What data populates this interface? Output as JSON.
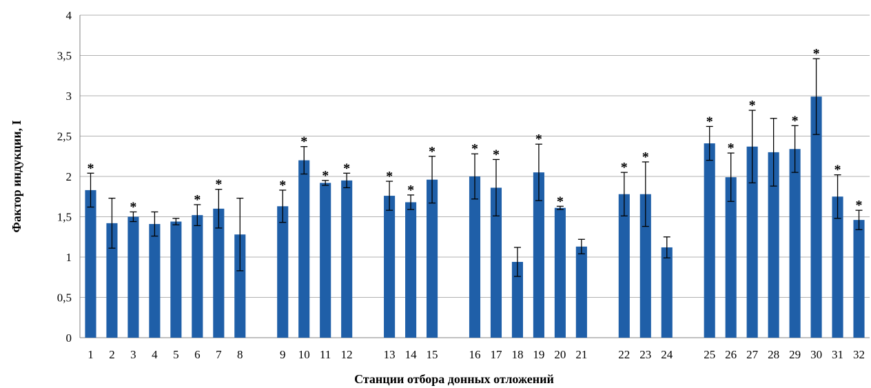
{
  "chart_data": {
    "type": "bar",
    "title": "",
    "xlabel": "Станции отбора донных отложений",
    "ylabel": "Фактор индукции, I",
    "ylim": [
      0,
      4
    ],
    "yticks": [
      "0",
      "0,5",
      "1",
      "1,5",
      "2",
      "2,5",
      "3",
      "3,5",
      "4"
    ],
    "ytick_values": [
      0,
      0.5,
      1,
      1.5,
      2,
      2.5,
      3,
      3.5,
      4
    ],
    "grid": true,
    "legend": "none",
    "bar_color": "#1f5fa8",
    "significance_marker": "*",
    "groups": [
      [
        "1",
        "2",
        "3",
        "4",
        "5",
        "6",
        "7",
        "8"
      ],
      [
        "9",
        "10",
        "11",
        "12"
      ],
      [
        "13",
        "14",
        "15"
      ],
      [
        "16",
        "17",
        "18",
        "19",
        "20",
        "21"
      ],
      [
        "22",
        "23",
        "24"
      ],
      [
        "25",
        "26",
        "27",
        "28",
        "29",
        "30",
        "31",
        "32"
      ]
    ],
    "categories": [
      "1",
      "2",
      "3",
      "4",
      "5",
      "6",
      "7",
      "8",
      "9",
      "10",
      "11",
      "12",
      "13",
      "14",
      "15",
      "16",
      "17",
      "18",
      "19",
      "20",
      "21",
      "22",
      "23",
      "24",
      "25",
      "26",
      "27",
      "28",
      "29",
      "30",
      "31",
      "32"
    ],
    "values": [
      1.83,
      1.42,
      1.5,
      1.41,
      1.44,
      1.52,
      1.6,
      1.28,
      1.63,
      2.2,
      1.92,
      1.95,
      1.76,
      1.68,
      1.96,
      2.0,
      1.86,
      0.94,
      2.05,
      1.61,
      1.13,
      1.78,
      1.78,
      1.12,
      2.41,
      1.99,
      2.37,
      2.3,
      2.34,
      2.99,
      1.75,
      1.46
    ],
    "errors": [
      0.21,
      0.31,
      0.06,
      0.15,
      0.04,
      0.13,
      0.24,
      0.45,
      0.2,
      0.17,
      0.03,
      0.09,
      0.18,
      0.09,
      0.29,
      0.28,
      0.35,
      0.18,
      0.35,
      0.02,
      0.09,
      0.27,
      0.4,
      0.13,
      0.21,
      0.3,
      0.45,
      0.42,
      0.29,
      0.47,
      0.27,
      0.12
    ],
    "significant": [
      true,
      false,
      true,
      false,
      false,
      true,
      true,
      false,
      true,
      true,
      true,
      true,
      true,
      true,
      true,
      true,
      true,
      false,
      true,
      true,
      false,
      true,
      true,
      false,
      true,
      true,
      true,
      false,
      true,
      true,
      true,
      true
    ]
  }
}
